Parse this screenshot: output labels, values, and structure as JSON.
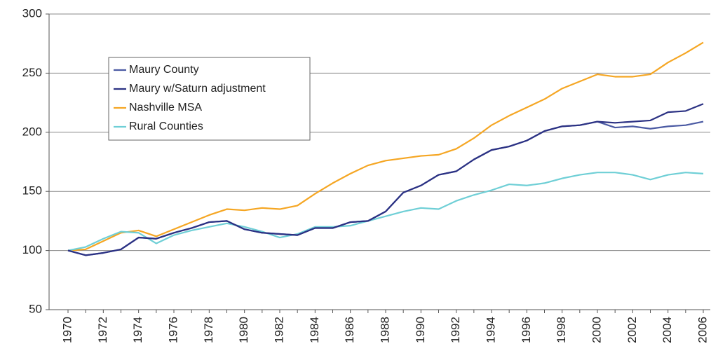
{
  "chart_data": {
    "type": "line",
    "categories": [
      "1970",
      null,
      "1972",
      null,
      "1974",
      null,
      "1976",
      null,
      "1978",
      null,
      "1980",
      null,
      "1982",
      null,
      "1984",
      null,
      "1986",
      null,
      "1988",
      null,
      "1990",
      null,
      "1992",
      null,
      "1994",
      null,
      "1996",
      null,
      "1998",
      null,
      "2000",
      null,
      "2002",
      null,
      "2004",
      null,
      "2006"
    ],
    "series": [
      {
        "name": "Maury County",
        "color": "#4b5aa3",
        "values": [
          100,
          96,
          98,
          101,
          111,
          110,
          115,
          119,
          124,
          125,
          118,
          115,
          114,
          113,
          119,
          119,
          124,
          125,
          133,
          149,
          155,
          164,
          167,
          177,
          185,
          188,
          193,
          201,
          205,
          206,
          209,
          204,
          205,
          203,
          205,
          206,
          209
        ]
      },
      {
        "name": "Maury w/Saturn adjustment",
        "color": "#2b3183",
        "values": [
          100,
          96,
          98,
          101,
          111,
          110,
          115,
          119,
          124,
          125,
          118,
          115,
          114,
          113,
          119,
          119,
          124,
          125,
          133,
          149,
          155,
          164,
          167,
          177,
          185,
          188,
          193,
          201,
          205,
          206,
          209,
          208,
          209,
          210,
          217,
          218,
          224
        ]
      },
      {
        "name": "Nashville MSA",
        "color": "#f5a623",
        "values": [
          100,
          101,
          108,
          115,
          117,
          112,
          118,
          124,
          130,
          135,
          134,
          136,
          135,
          138,
          148,
          157,
          165,
          172,
          176,
          178,
          180,
          181,
          186,
          195,
          206,
          214,
          221,
          228,
          237,
          243,
          249,
          247,
          247,
          249,
          259,
          267,
          276
        ]
      },
      {
        "name": "Rural Counties",
        "color": "#6fcfd6",
        "values": [
          100,
          103,
          110,
          116,
          115,
          106,
          113,
          117,
          120,
          123,
          120,
          116,
          111,
          114,
          120,
          120,
          121,
          125,
          129,
          133,
          136,
          135,
          142,
          147,
          151,
          156,
          155,
          157,
          161,
          164,
          166,
          166,
          164,
          160,
          164,
          166,
          165
        ]
      }
    ],
    "ylim": [
      50,
      300
    ],
    "yticks": [
      50,
      100,
      150,
      200,
      250,
      300
    ],
    "grid": true
  }
}
